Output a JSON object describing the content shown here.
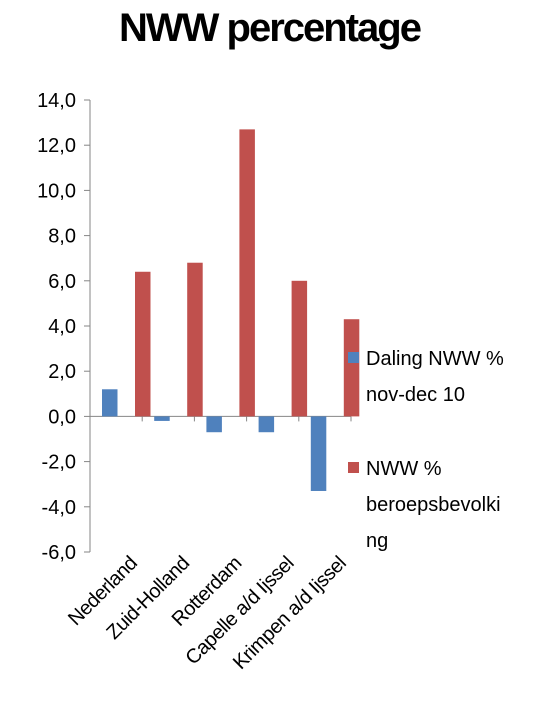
{
  "chart_data": {
    "type": "bar",
    "title": "NWW percentage",
    "categories": [
      "Nederland",
      "Zuid-Holland",
      "Rotterdam",
      "Capelle a/d Ijssel",
      "Krimpen a/d Ijssel"
    ],
    "series": [
      {
        "name": "Daling NWW % nov-dec 10",
        "legend_lines": [
          "Daling NWW %",
          "nov-dec 10"
        ],
        "color": "#4F81BD",
        "values": [
          1.2,
          -0.2,
          -0.7,
          -0.7,
          -3.3
        ]
      },
      {
        "name": "NWW % beroepsbevolking",
        "legend_lines": [
          "NWW %",
          "beroepsbevolki",
          "ng"
        ],
        "color": "#C0504D",
        "values": [
          6.4,
          6.8,
          12.7,
          6.0,
          4.3
        ]
      }
    ],
    "ylim": [
      -6,
      14
    ],
    "yticks": [
      "-6,0",
      "-4,0",
      "-2,0",
      "0,0",
      "2,0",
      "4,0",
      "6,0",
      "8,0",
      "10,0",
      "12,0",
      "14,0"
    ],
    "grid": false,
    "legend_position": "right",
    "xlabel": "",
    "ylabel": ""
  }
}
